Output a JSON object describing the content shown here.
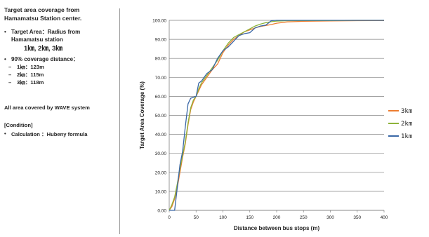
{
  "sidebar": {
    "title_line1": "Target area coverage from",
    "title_line2": "Hamamatsu Station center.",
    "b1_line1": "Target Area：Radius from",
    "b1_line2": "Hamamatsu station",
    "b1_sub": "1㎞, 2㎞, 3㎞",
    "b2": "90% coverage distance：",
    "d1": "1㎞：123m",
    "d2": "2㎞：115m",
    "d3": "3㎞：118m",
    "all_area": "All area covered by WAVE system",
    "cond_head": "[Condition]",
    "cond_item": "Calculation ：Hubeny formula"
  },
  "chart_data": {
    "type": "line",
    "xlabel": "Distance between bus stops (m)",
    "ylabel": "Target Area Coverage (%)",
    "xlim": [
      0,
      400
    ],
    "ylim": [
      0,
      100
    ],
    "xticks": [
      "0",
      "50",
      "100",
      "150",
      "200",
      "250",
      "300",
      "350",
      "400"
    ],
    "yticks": [
      "0.00",
      "10.00",
      "20.00",
      "30.00",
      "40.00",
      "50.00",
      "60.00",
      "70.00",
      "80.00",
      "90.00",
      "100.00"
    ],
    "grid": true,
    "legend_position": "right",
    "series": [
      {
        "name": "3km",
        "color": "#ED7D31",
        "x": [
          0,
          5,
          10,
          15,
          20,
          25,
          30,
          35,
          40,
          45,
          50,
          55,
          60,
          70,
          80,
          90,
          100,
          110,
          120,
          130,
          140,
          150,
          160,
          170,
          180,
          190,
          200,
          220,
          250,
          300,
          350,
          400
        ],
        "y": [
          0,
          2,
          6,
          12,
          20,
          28,
          35,
          45,
          53,
          57,
          60,
          63,
          66,
          70,
          74,
          77,
          83,
          87,
          90,
          92,
          94,
          95,
          96,
          96.8,
          97.3,
          97.8,
          98.5,
          99.2,
          99.5,
          99.7,
          99.8,
          99.9
        ]
      },
      {
        "name": "2km",
        "color": "#8DB33A",
        "x": [
          0,
          5,
          10,
          15,
          20,
          25,
          30,
          35,
          40,
          45,
          50,
          55,
          60,
          70,
          80,
          90,
          100,
          110,
          120,
          130,
          140,
          150,
          160,
          170,
          180,
          190,
          200,
          220,
          250,
          300,
          350,
          400
        ],
        "y": [
          0,
          3,
          7,
          14,
          22,
          29,
          36,
          46,
          54,
          58,
          60,
          64,
          67,
          71,
          75,
          79,
          84,
          88,
          91,
          92.5,
          94,
          95.5,
          97,
          98,
          98.8,
          99.3,
          99.6,
          99.8,
          99.9,
          99.9,
          100,
          100
        ]
      },
      {
        "name": "1km",
        "color": "#3A67A6",
        "x": [
          0,
          5,
          10,
          15,
          20,
          25,
          30,
          35,
          40,
          45,
          50,
          55,
          60,
          70,
          80,
          90,
          100,
          110,
          120,
          130,
          140,
          150,
          160,
          170,
          180,
          190,
          200,
          220,
          250,
          300,
          350,
          400
        ],
        "y": [
          0,
          0,
          0,
          12,
          24,
          31,
          44,
          56,
          59,
          59.5,
          60,
          67,
          68,
          72,
          74,
          80,
          84,
          86,
          89,
          92,
          93,
          93.5,
          96,
          97,
          97.5,
          99.8,
          100,
          100,
          100,
          100,
          100,
          100
        ]
      }
    ]
  }
}
